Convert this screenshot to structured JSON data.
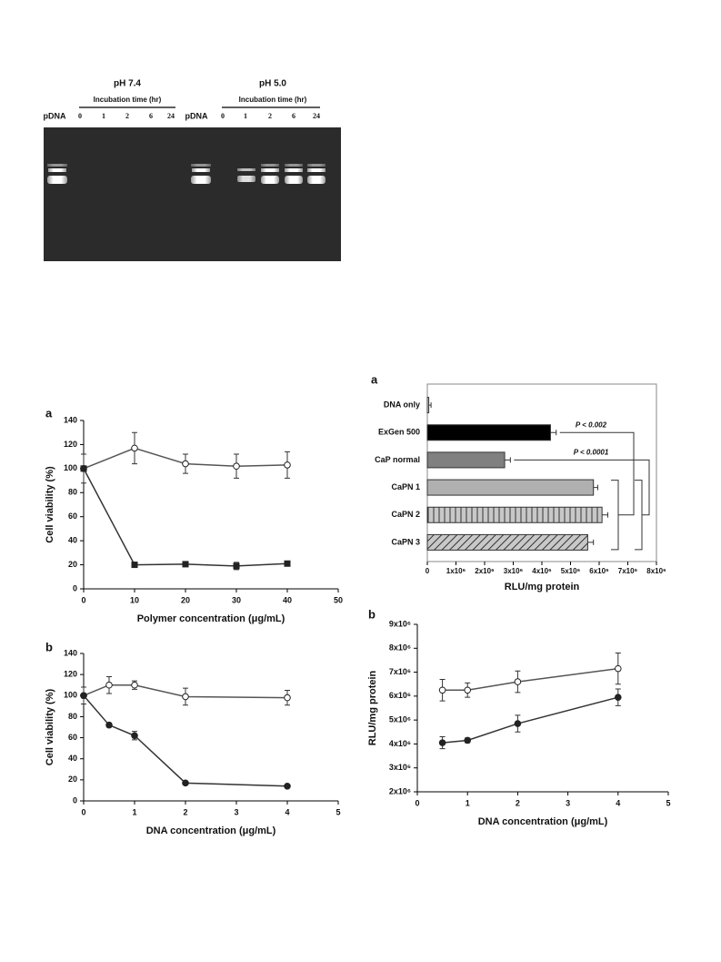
{
  "gel": {
    "groups": [
      {
        "title": "pH 7.4",
        "subtitle": "Incubation time (hr)",
        "lanes": [
          "pDNA",
          "0",
          "1",
          "2",
          "6",
          "24"
        ]
      },
      {
        "title": "pH 5.0",
        "subtitle": "Incubation time (hr)",
        "lanes": [
          "pDNA",
          "0",
          "1",
          "2",
          "6",
          "24"
        ]
      }
    ]
  },
  "chart_data": [
    {
      "type": "line",
      "panel": "a",
      "xlabel": "Polymer concentration (μg/mL)",
      "ylabel": "Cell viability (%)",
      "xlim": [
        0,
        50
      ],
      "xticks": [
        0,
        10,
        20,
        30,
        40,
        50
      ],
      "ylim": [
        0,
        140
      ],
      "yticks": [
        0,
        20,
        40,
        60,
        80,
        100,
        120,
        140
      ],
      "series": [
        {
          "color": "#555555",
          "marker": "open-circle",
          "x": [
            0,
            10,
            20,
            30,
            40
          ],
          "values": [
            100,
            117,
            104,
            102,
            103
          ],
          "errors": [
            12,
            13,
            8,
            10,
            11
          ]
        },
        {
          "color": "#333333",
          "marker": "filled-square",
          "x": [
            0,
            10,
            20,
            30,
            40
          ],
          "values": [
            100,
            20,
            20.5,
            19,
            21
          ],
          "errors": [
            0,
            1,
            1,
            3,
            2
          ]
        }
      ]
    },
    {
      "type": "line",
      "panel": "b",
      "xlabel": "DNA concentration (μg/mL)",
      "ylabel": "Cell viability (%)",
      "xlim": [
        0,
        5
      ],
      "xticks": [
        0,
        1,
        2,
        3,
        4,
        5
      ],
      "ylim": [
        0,
        140
      ],
      "yticks": [
        0,
        20,
        40,
        60,
        80,
        100,
        120,
        140
      ],
      "series": [
        {
          "color": "#555555",
          "marker": "open-circle",
          "x": [
            0,
            0.5,
            1,
            2,
            4
          ],
          "values": [
            100,
            110,
            110,
            99,
            98
          ],
          "errors": [
            8,
            8,
            4,
            8,
            7
          ]
        },
        {
          "color": "#333333",
          "marker": "filled-circle",
          "x": [
            0,
            0.5,
            1,
            2,
            4
          ],
          "values": [
            100,
            72,
            62,
            17,
            14
          ],
          "errors": [
            2,
            2,
            4,
            1,
            1
          ]
        }
      ]
    },
    {
      "type": "hbar",
      "panel": "a",
      "xlabel": "RLU/mg protein",
      "frame": true,
      "categories": [
        "DNA only",
        "ExGen 500",
        "CaP normal",
        "CaPN 1",
        "CaPN 2",
        "CaPN 3"
      ],
      "values": [
        50000,
        4300000,
        2700000,
        5800000,
        6100000,
        5600000
      ],
      "errors": [
        80000,
        200000,
        200000,
        150000,
        200000,
        200000
      ],
      "colors": [
        "#ffffff",
        "#000000",
        "#808080",
        "#b0b0b0",
        "#c8c8c8",
        "#c8c8c8"
      ],
      "hatch": [
        null,
        null,
        null,
        null,
        "vertical",
        "diagonal"
      ],
      "xlim": [
        0,
        8000000
      ],
      "xticks": [
        0,
        {
          "value": 1000000,
          "label": "1x10⁶"
        },
        {
          "value": 2000000,
          "label": "2x10⁶"
        },
        {
          "value": 3000000,
          "label": "3x10⁶"
        },
        {
          "value": 4000000,
          "label": "4x10⁶"
        },
        {
          "value": 5000000,
          "label": "5x10⁶"
        },
        {
          "value": 6000000,
          "label": "6x10⁶"
        },
        {
          "value": 7000000,
          "label": "7x10⁶"
        },
        {
          "value": 8000000,
          "label": "8x10⁶"
        }
      ],
      "annotations": [
        "P < 0.002",
        "P < 0.0001"
      ]
    },
    {
      "type": "line",
      "panel": "b",
      "xlabel": "DNA concentration (μg/mL)",
      "ylabel": "RLU/mg protein",
      "xlim": [
        0,
        5
      ],
      "xticks": [
        0,
        1,
        2,
        3,
        4,
        5
      ],
      "ylim": [
        2000000,
        9000000
      ],
      "yticks": [
        {
          "value": 2000000,
          "label": "2x10⁶"
        },
        {
          "value": 3000000,
          "label": "3x10⁶"
        },
        {
          "value": 4000000,
          "label": "4x10⁶"
        },
        {
          "value": 5000000,
          "label": "5x10⁶"
        },
        {
          "value": 6000000,
          "label": "6x10⁶"
        },
        {
          "value": 7000000,
          "label": "7x10⁶"
        },
        {
          "value": 8000000,
          "label": "8x10⁶"
        },
        {
          "value": 9000000,
          "label": "9x10⁶"
        }
      ],
      "series": [
        {
          "color": "#555555",
          "marker": "open-circle",
          "x": [
            0.5,
            1,
            2,
            4
          ],
          "values": [
            6250000,
            6250000,
            6600000,
            7150000
          ],
          "errors": [
            450000,
            300000,
            450000,
            650000
          ]
        },
        {
          "color": "#333333",
          "marker": "filled-circle",
          "x": [
            0.5,
            1,
            2,
            4
          ],
          "values": [
            4050000,
            4150000,
            4850000,
            5950000
          ],
          "errors": [
            250000,
            100000,
            350000,
            350000
          ]
        }
      ]
    }
  ]
}
